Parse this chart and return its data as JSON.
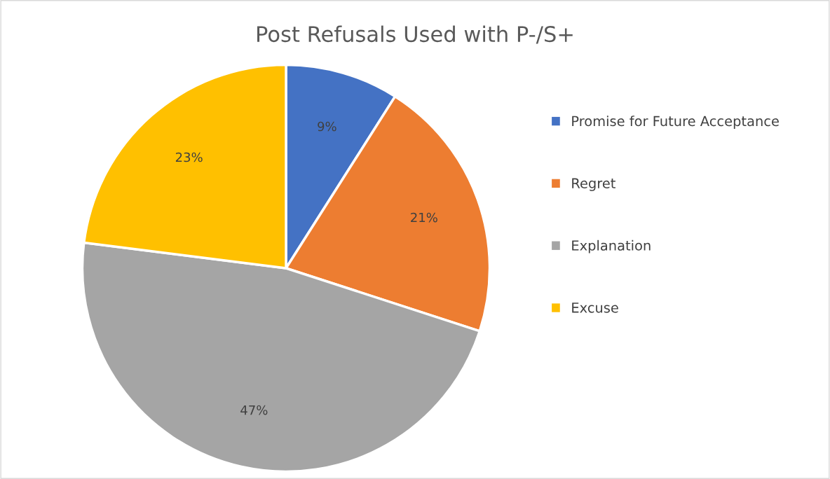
{
  "chart_data": {
    "type": "pie",
    "title": "Post Refusals Used with P-/S+",
    "categories": [
      "Promise for Future Acceptance",
      "Regret",
      "Explanation",
      "Excuse"
    ],
    "values": [
      9,
      21,
      47,
      23
    ],
    "colors": [
      "#4472c4",
      "#ed7d31",
      "#a5a5a5",
      "#ffc000"
    ],
    "value_labels": [
      "9%",
      "21%",
      "47%",
      "23%"
    ],
    "legend": "right"
  }
}
